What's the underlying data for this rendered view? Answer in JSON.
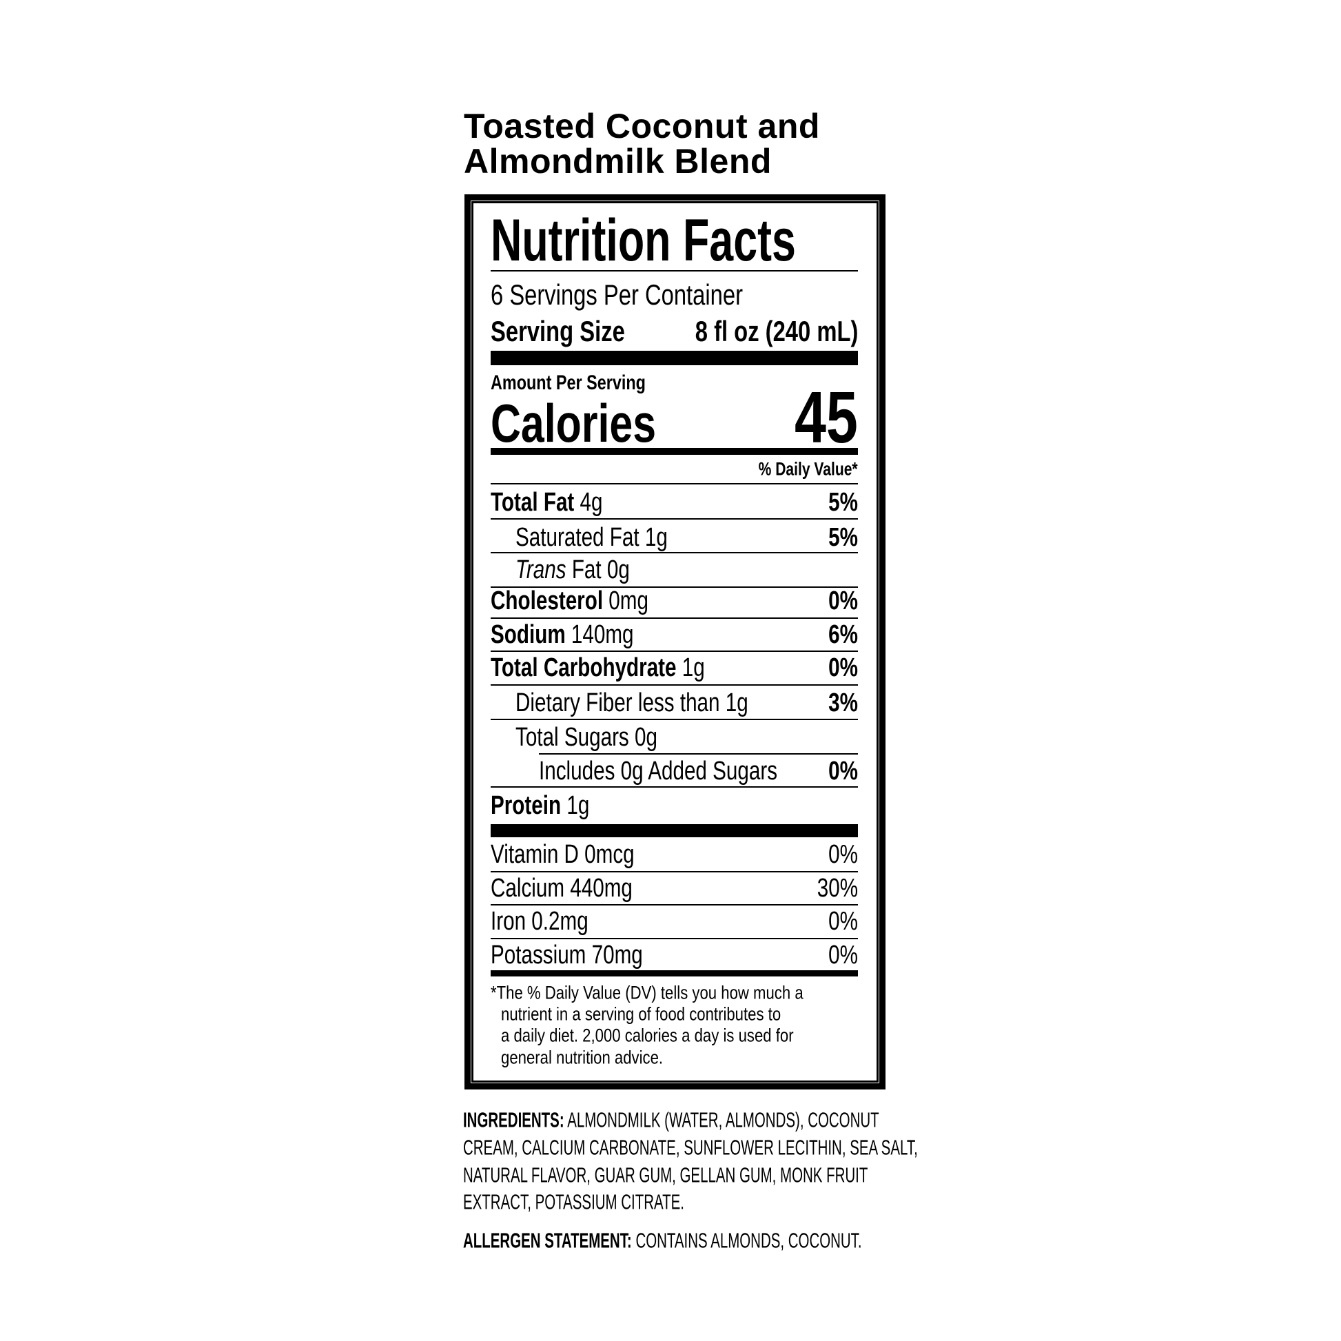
{
  "product_name": [
    "Toasted Coconut and",
    "Almondmilk Blend"
  ],
  "label": {
    "heading": "Nutrition Facts",
    "servings_per_container": "6 Servings Per Container",
    "serving_size_label": "Serving Size",
    "serving_size_value": "8 fl oz (240 mL)",
    "amount_per_serving": "Amount Per Serving",
    "calories_label": "Calories",
    "calories_value": "45",
    "daily_value_header": "% Daily Value*",
    "nutrients": [
      {
        "name": "Total Fat",
        "amount": "4g",
        "dv": "5%",
        "bold": true,
        "indent": 0
      },
      {
        "name": "Saturated Fat",
        "amount": "1g",
        "dv": "5%",
        "bold": false,
        "indent": 1
      },
      {
        "name_italic": "Trans",
        "name": "Fat",
        "amount": "0g",
        "dv": "",
        "bold": false,
        "indent": 1
      },
      {
        "name": "Cholesterol",
        "amount": "0mg",
        "dv": "0%",
        "bold": true,
        "indent": 0
      },
      {
        "name": "Sodium",
        "amount": "140mg",
        "dv": "6%",
        "bold": true,
        "indent": 0
      },
      {
        "name": "Total Carbohydrate",
        "amount": "1g",
        "dv": "0%",
        "bold": true,
        "indent": 0
      },
      {
        "name": "Dietary Fiber",
        "amount": "less than 1g",
        "dv": "3%",
        "bold": false,
        "indent": 1
      },
      {
        "name": "Total Sugars",
        "amount": "0g",
        "dv": "",
        "bold": false,
        "indent": 1
      },
      {
        "name": "Includes 0g Added Sugars",
        "amount": "",
        "dv": "0%",
        "bold": false,
        "indent": 2
      },
      {
        "name": "Protein",
        "amount": "1g",
        "dv": "",
        "bold": true,
        "indent": 0
      }
    ],
    "vitamins": [
      {
        "name": "Vitamin D",
        "amount": "0mcg",
        "dv": "0%"
      },
      {
        "name": "Calcium",
        "amount": "440mg",
        "dv": "30%"
      },
      {
        "name": "Iron",
        "amount": "0.2mg",
        "dv": "0%"
      },
      {
        "name": "Potassium",
        "amount": "70mg",
        "dv": "0%"
      }
    ],
    "footnote": [
      "*The % Daily Value (DV) tells you how much a",
      "nutrient in a serving of food contributes to",
      "a daily diet. 2,000 calories a day is used for",
      "general nutrition advice."
    ]
  },
  "ingredients": {
    "label": "INGREDIENTS:",
    "lines": [
      "ALMONDMILK (WATER, ALMONDS), COCONUT",
      "CREAM, CALCIUM CARBONATE, SUNFLOWER LECITHIN, SEA SALT,",
      "NATURAL FLAVOR, GUAR GUM, GELLAN GUM, MONK FRUIT",
      "EXTRACT, POTASSIUM CITRATE."
    ]
  },
  "allergen": {
    "label": "ALLERGEN STATEMENT:",
    "text": "CONTAINS ALMONDS, COCONUT."
  }
}
